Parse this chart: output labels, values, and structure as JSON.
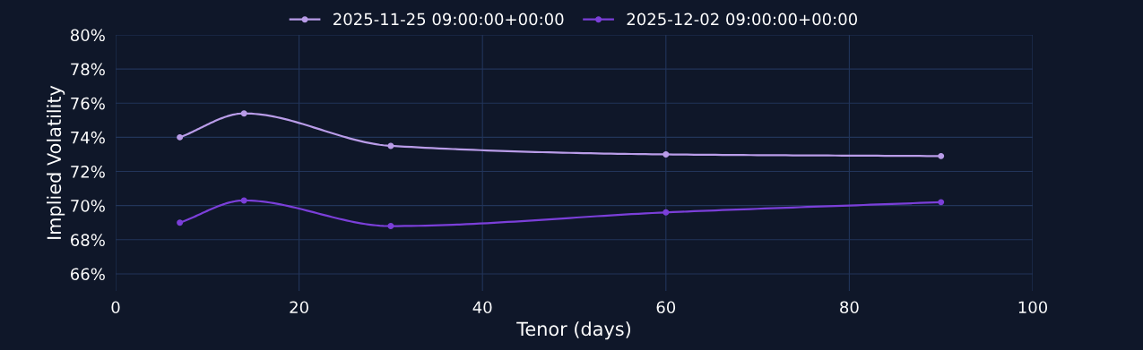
{
  "chart_data": {
    "type": "line",
    "xlabel": "Tenor (days)",
    "ylabel": "Implied Volatility",
    "x": [
      7,
      14,
      30,
      60,
      90
    ],
    "series": [
      {
        "name": "2025-11-25 09:00:00+00:00",
        "color": "#b99ce8",
        "values": [
          74.0,
          75.4,
          73.5,
          73.0,
          72.9
        ]
      },
      {
        "name": "2025-12-02 09:00:00+00:00",
        "color": "#7b3fd9",
        "values": [
          69.0,
          70.3,
          68.8,
          69.6,
          70.2
        ]
      }
    ],
    "xlim": [
      0,
      100
    ],
    "xticks": [
      0,
      20,
      40,
      60,
      80,
      100
    ],
    "ylim": [
      65,
      80
    ],
    "yticks": [
      {
        "value": 66,
        "label": "66%"
      },
      {
        "value": 68,
        "label": "68%"
      },
      {
        "value": 70,
        "label": "70%"
      },
      {
        "value": 72,
        "label": "72%"
      },
      {
        "value": 74,
        "label": "74%"
      },
      {
        "value": 76,
        "label": "76%"
      },
      {
        "value": 78,
        "label": "78%"
      },
      {
        "value": 80,
        "label": "80%"
      }
    ],
    "grid": true,
    "legend": "top",
    "marker": "circle",
    "line_style": "solid"
  }
}
